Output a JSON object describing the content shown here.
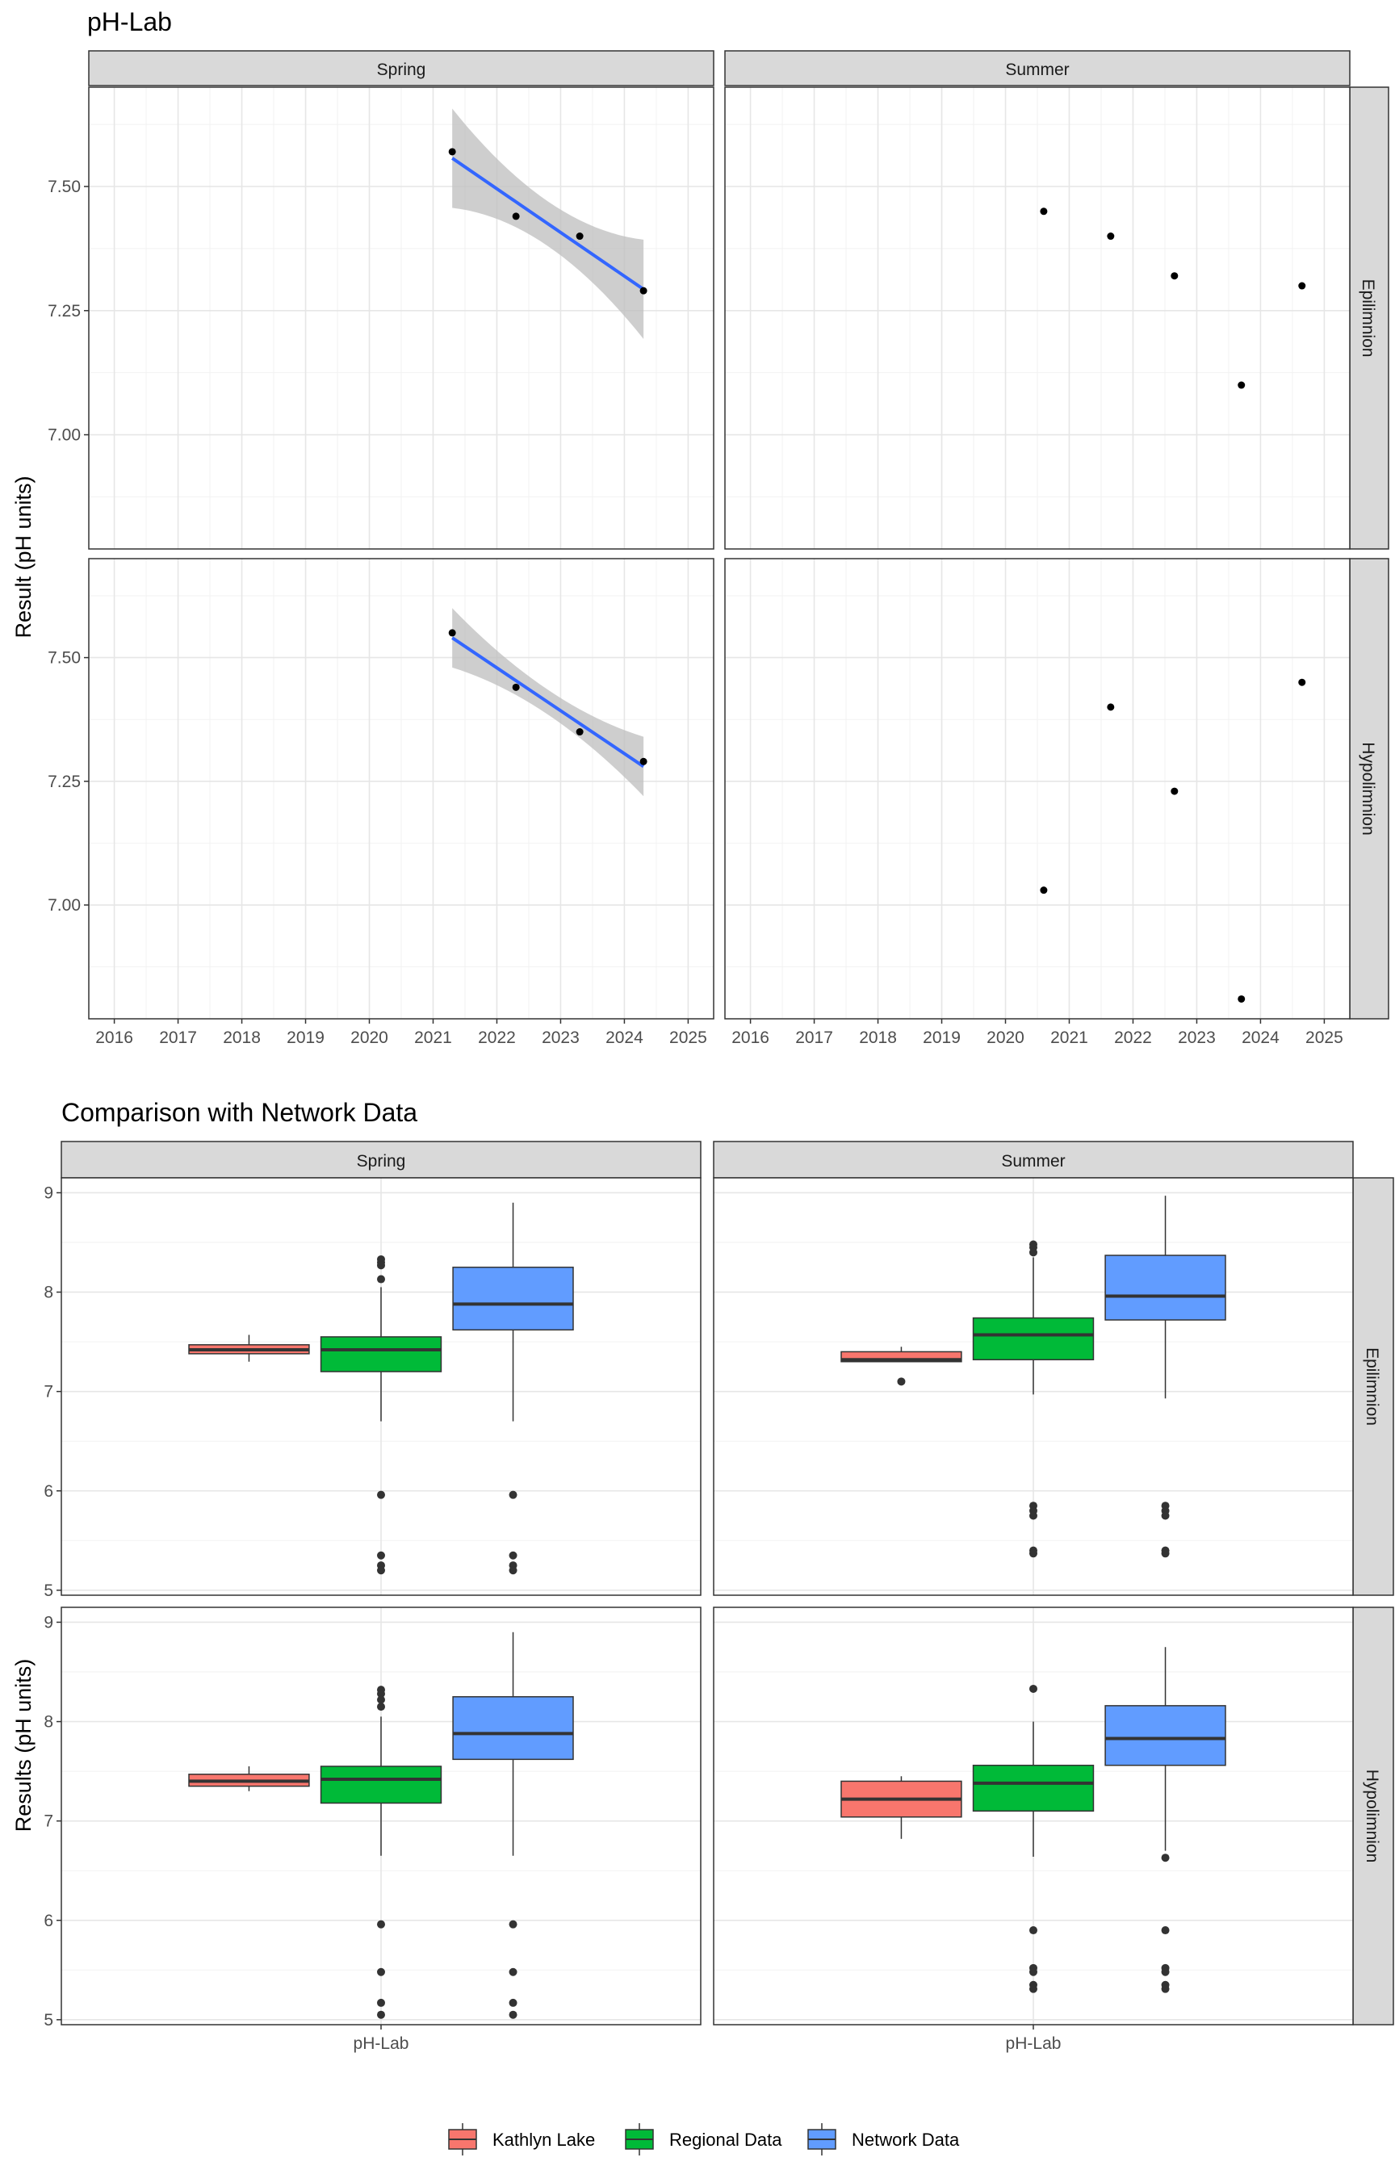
{
  "chart_data": [
    {
      "type": "scatter",
      "title": "pH-Lab",
      "ylabel": "Result (pH units)",
      "xlabel": "",
      "columns": [
        "Spring",
        "Summer"
      ],
      "rows": [
        "Epilimnion",
        "Hypolimnion"
      ],
      "xlim": [
        2015.6,
        2025.4
      ],
      "ylim": [
        6.77,
        7.7
      ],
      "x_ticks": [
        2016,
        2017,
        2018,
        2019,
        2020,
        2021,
        2022,
        2023,
        2024,
        2025
      ],
      "y_ticks": [
        7.0,
        7.25,
        7.5
      ],
      "y_tick_labels": [
        "7.00",
        "7.25",
        "7.50"
      ],
      "grid": true,
      "smooth_color": "#3366ff",
      "ribbon_color": "#bdbdbd",
      "panels": [
        {
          "column": "Spring",
          "row": "Epilimnion",
          "points": [
            {
              "x": 2021.3,
              "y": 7.57
            },
            {
              "x": 2022.3,
              "y": 7.44
            },
            {
              "x": 2023.3,
              "y": 7.4
            },
            {
              "x": 2024.3,
              "y": 7.29
            }
          ],
          "trend": {
            "x_start": 2021.3,
            "x_end": 2024.3,
            "y_start": 7.557,
            "y_end": 7.293,
            "band_mid": 0.045,
            "band_end": 0.1
          }
        },
        {
          "column": "Summer",
          "row": "Epilimnion",
          "points": [
            {
              "x": 2020.6,
              "y": 7.45
            },
            {
              "x": 2021.65,
              "y": 7.4
            },
            {
              "x": 2022.65,
              "y": 7.32
            },
            {
              "x": 2023.7,
              "y": 7.1
            },
            {
              "x": 2024.65,
              "y": 7.3
            }
          ]
        },
        {
          "column": "Spring",
          "row": "Hypolimnion",
          "points": [
            {
              "x": 2021.3,
              "y": 7.55
            },
            {
              "x": 2022.3,
              "y": 7.44
            },
            {
              "x": 2023.3,
              "y": 7.35
            },
            {
              "x": 2024.3,
              "y": 7.29
            }
          ],
          "trend": {
            "x_start": 2021.3,
            "x_end": 2024.3,
            "y_start": 7.54,
            "y_end": 7.28,
            "band_mid": 0.025,
            "band_end": 0.06
          }
        },
        {
          "column": "Summer",
          "row": "Hypolimnion",
          "points": [
            {
              "x": 2020.6,
              "y": 7.03
            },
            {
              "x": 2021.65,
              "y": 7.4
            },
            {
              "x": 2022.65,
              "y": 7.23
            },
            {
              "x": 2023.7,
              "y": 6.81
            },
            {
              "x": 2024.65,
              "y": 7.45
            }
          ]
        }
      ]
    },
    {
      "type": "box",
      "title": "Comparison with Network Data",
      "ylabel": "Results (pH units)",
      "xlabel": "",
      "category": "pH-Lab",
      "columns": [
        "Spring",
        "Summer"
      ],
      "rows": [
        "Epilimnion",
        "Hypolimnion"
      ],
      "ylim": [
        4.95,
        9.15
      ],
      "y_ticks": [
        5,
        6,
        7,
        8,
        9
      ],
      "grid": true,
      "series": [
        {
          "name": "Kathlyn Lake",
          "color": "#f8766d"
        },
        {
          "name": "Regional Data",
          "color": "#00ba38"
        },
        {
          "name": "Network Data",
          "color": "#619cff"
        }
      ],
      "panels": [
        {
          "column": "Spring",
          "row": "Epilimnion",
          "boxes": [
            {
              "series": "Kathlyn Lake",
              "whisker_low": 7.3,
              "q1": 7.38,
              "median": 7.42,
              "q3": 7.47,
              "whisker_high": 7.57,
              "outliers": []
            },
            {
              "series": "Regional Data",
              "whisker_low": 6.7,
              "q1": 7.2,
              "median": 7.42,
              "q3": 7.55,
              "whisker_high": 8.05,
              "outliers": [
                8.33,
                8.3,
                8.27,
                8.13,
                5.96,
                5.35,
                5.25,
                5.2
              ]
            },
            {
              "series": "Network Data",
              "whisker_low": 6.7,
              "q1": 7.62,
              "median": 7.88,
              "q3": 8.25,
              "whisker_high": 8.9,
              "outliers": [
                5.96,
                5.35,
                5.25,
                5.2
              ]
            }
          ]
        },
        {
          "column": "Summer",
          "row": "Epilimnion",
          "boxes": [
            {
              "series": "Kathlyn Lake",
              "whisker_low": 7.3,
              "q1": 7.3,
              "median": 7.32,
              "q3": 7.4,
              "whisker_high": 7.45,
              "outliers": [
                7.1
              ]
            },
            {
              "series": "Regional Data",
              "whisker_low": 6.97,
              "q1": 7.32,
              "median": 7.57,
              "q3": 7.74,
              "whisker_high": 8.35,
              "outliers": [
                8.48,
                8.45,
                8.4,
                5.85,
                5.8,
                5.75,
                5.4,
                5.37
              ]
            },
            {
              "series": "Network Data",
              "whisker_low": 6.93,
              "q1": 7.72,
              "median": 7.96,
              "q3": 8.37,
              "whisker_high": 8.97,
              "outliers": [
                5.85,
                5.8,
                5.75,
                5.4,
                5.37
              ]
            }
          ]
        },
        {
          "column": "Spring",
          "row": "Hypolimnion",
          "boxes": [
            {
              "series": "Kathlyn Lake",
              "whisker_low": 7.3,
              "q1": 7.35,
              "median": 7.4,
              "q3": 7.47,
              "whisker_high": 7.55,
              "outliers": []
            },
            {
              "series": "Regional Data",
              "whisker_low": 6.65,
              "q1": 7.18,
              "median": 7.42,
              "q3": 7.55,
              "whisker_high": 8.05,
              "outliers": [
                8.32,
                8.28,
                8.22,
                8.15,
                5.96,
                5.48,
                5.17,
                5.05
              ]
            },
            {
              "series": "Network Data",
              "whisker_low": 6.65,
              "q1": 7.62,
              "median": 7.88,
              "q3": 8.25,
              "whisker_high": 8.9,
              "outliers": [
                5.96,
                5.48,
                5.17,
                5.05
              ]
            }
          ]
        },
        {
          "column": "Summer",
          "row": "Hypolimnion",
          "boxes": [
            {
              "series": "Kathlyn Lake",
              "whisker_low": 6.82,
              "q1": 7.04,
              "median": 7.22,
              "q3": 7.4,
              "whisker_high": 7.45,
              "outliers": []
            },
            {
              "series": "Regional Data",
              "whisker_low": 6.64,
              "q1": 7.1,
              "median": 7.38,
              "q3": 7.56,
              "whisker_high": 8.0,
              "outliers": [
                8.33,
                5.9,
                5.52,
                5.48,
                5.35,
                5.31
              ]
            },
            {
              "series": "Network Data",
              "whisker_low": 6.7,
              "q1": 7.56,
              "median": 7.83,
              "q3": 8.16,
              "whisker_high": 8.75,
              "outliers": [
                6.63,
                5.9,
                5.52,
                5.48,
                5.35,
                5.31
              ]
            }
          ]
        }
      ]
    }
  ],
  "legend": {
    "items": [
      "Kathlyn Lake",
      "Regional Data",
      "Network Data"
    ],
    "placement": "bottom"
  }
}
